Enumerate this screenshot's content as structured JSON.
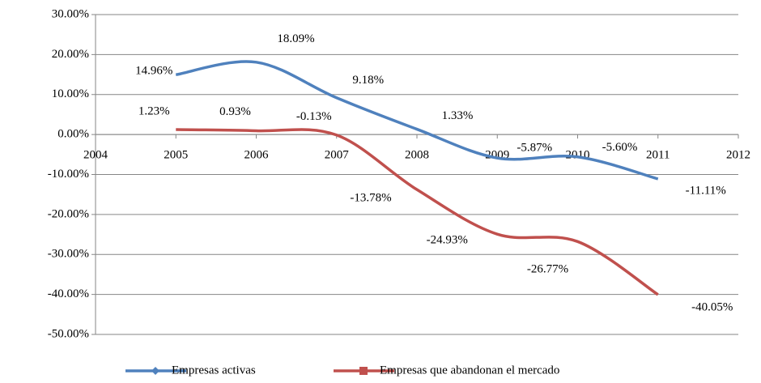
{
  "chart_data": {
    "type": "line",
    "x": [
      2005,
      2006,
      2007,
      2008,
      2009,
      2010,
      2011
    ],
    "series": [
      {
        "name": "Empresas activas",
        "color": "#4f81bd",
        "values": [
          14.96,
          18.09,
          9.18,
          1.33,
          -5.87,
          -5.6,
          -11.11
        ],
        "value_labels": [
          "14.96%",
          "18.09%",
          "9.18%",
          "1.33%",
          "-5.87%",
          "-5.60%",
          "-11.11%"
        ]
      },
      {
        "name": "Empresas que abandonan el mercado",
        "color": "#c0504d",
        "values": [
          1.23,
          0.93,
          -0.13,
          -13.78,
          -24.93,
          -26.77,
          -40.05
        ],
        "value_labels": [
          "1.23%",
          "0.93%",
          "-0.13%",
          "-13.78%",
          "-24.93%",
          "-26.77%",
          "-40.05%"
        ]
      }
    ],
    "xlim": [
      2004,
      2012
    ],
    "xticks": [
      2004,
      2005,
      2006,
      2007,
      2008,
      2009,
      2010,
      2011,
      2012
    ],
    "ylim": [
      -50,
      30
    ],
    "yticks": [
      {
        "value": 30,
        "label": "30.00%"
      },
      {
        "value": 20,
        "label": "20.00%"
      },
      {
        "value": 10,
        "label": "10.00%"
      },
      {
        "value": 0,
        "label": "0.00%"
      },
      {
        "value": -10,
        "label": "-10.00%"
      },
      {
        "value": -20,
        "label": "-20.00%"
      },
      {
        "value": -30,
        "label": "-30.00%"
      },
      {
        "value": -40,
        "label": "-40.00%"
      },
      {
        "value": -50,
        "label": "-50.00%"
      }
    ],
    "grid": true,
    "legend": "bottom"
  }
}
